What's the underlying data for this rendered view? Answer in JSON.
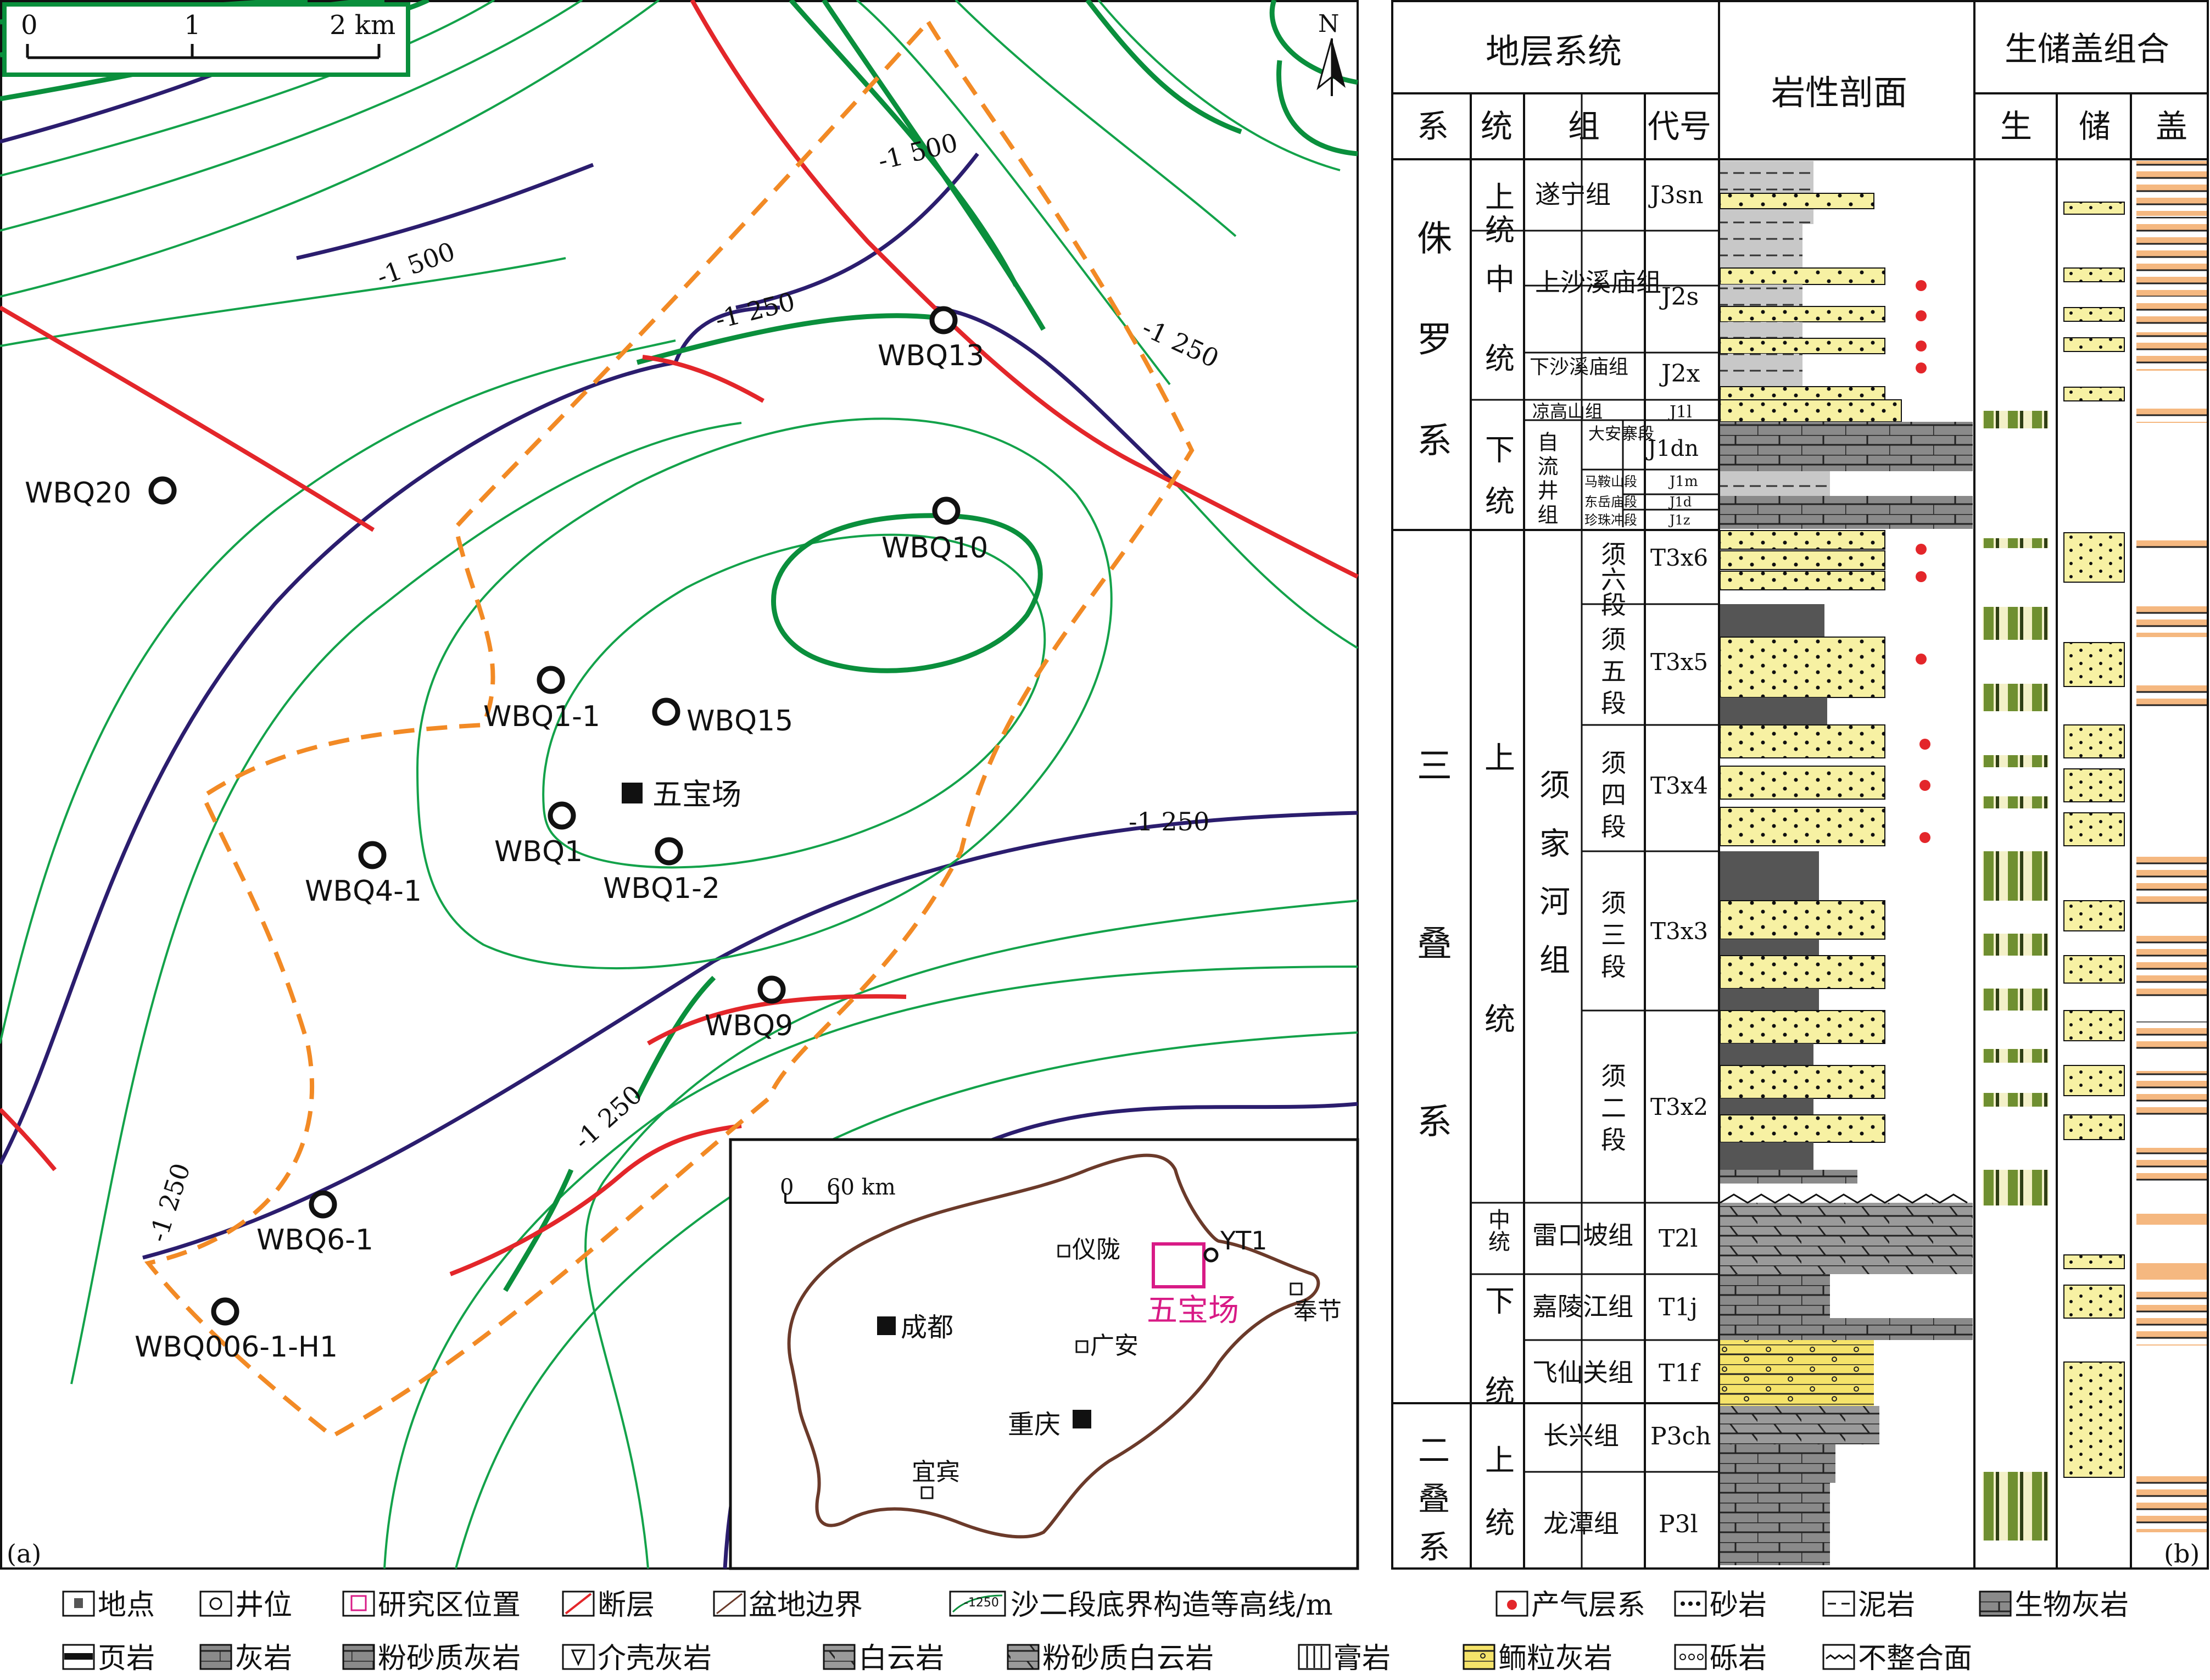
{
  "panel_a": {
    "label": "(a)",
    "scale_bar": {
      "ticks": [
        "0",
        "1",
        "2 km"
      ]
    },
    "north_label": "N",
    "contour_labels": [
      "-1 500",
      "-1 500",
      "-1 250",
      "-1 250",
      "-1 250",
      "-1 250",
      "-1 250"
    ],
    "wells": [
      "WBQ13",
      "WBQ20",
      "WBQ10",
      "WBQ1-1",
      "WBQ15",
      "WBQ1",
      "WBQ1-2",
      "WBQ4-1",
      "WBQ9",
      "WBQ6-1",
      "WBQ006-1-H1"
    ],
    "site": "五宝场",
    "inset": {
      "scale": [
        "0",
        "60 km"
      ],
      "cities": [
        "仪陇",
        "成都",
        "广安",
        "重庆",
        "宜宾",
        "奉节"
      ],
      "well": "YT1",
      "study_area": "五宝场"
    }
  },
  "panel_b": {
    "label": "(b)",
    "header": {
      "strat_system": "地层系统",
      "lithology": "岩性剖面",
      "combo": "生储盖组合",
      "cols": [
        "系",
        "统",
        "组",
        "代号"
      ],
      "combo_cols": [
        "生",
        "储",
        "盖"
      ]
    },
    "systems": [
      "侏罗系",
      "三叠系",
      "二叠系"
    ],
    "series": [
      "上统",
      "中统",
      "下统",
      "上统",
      "中统",
      "下统",
      "上统"
    ],
    "formations": [
      "遂宁组",
      "上沙溪庙组",
      "下沙溪庙组",
      "凉高山组",
      "自流井组",
      "大安寨段",
      "马鞍山段",
      "东岳庙段",
      "珍珠冲段",
      "须家河组",
      "须六段",
      "须五段",
      "须四段",
      "须三段",
      "须二段",
      "雷口坡组",
      "嘉陵江组",
      "飞仙关组",
      "长兴组",
      "龙潭组"
    ],
    "codes": [
      "J3sn",
      "J2s",
      "J2x",
      "J1l",
      "J1dn",
      "J1m",
      "J1d",
      "J1z",
      "T3x6",
      "T3x5",
      "T3x4",
      "T3x3",
      "T3x2",
      "T2l",
      "T1j",
      "T1f",
      "P3ch",
      "P3l"
    ]
  },
  "legend": {
    "row1": [
      "地点",
      "井位",
      "研究区位置",
      "断层",
      "盆地边界",
      "沙二段底界构造等高线/m",
      "产气层系",
      "砂岩",
      "泥岩",
      "生物灰岩"
    ],
    "row2": [
      "页岩",
      "灰岩",
      "粉砂质灰岩",
      "介壳灰岩",
      "白云岩",
      "粉砂质白云岩",
      "膏岩",
      "鲕粒灰岩",
      "砾岩",
      "不整合面"
    ],
    "contour_icon_text": "-1250"
  },
  "colors": {
    "contour_thick": "#0a8f3c",
    "contour_thin": "#13a24a",
    "contour_navy": "#2b1d6e",
    "fault": "#e3262a",
    "study_boundary": "#f28a25",
    "sandstone": "#f7f1a3",
    "source_green": "#7a9a3c",
    "cap_orange": "#f5b880"
  }
}
